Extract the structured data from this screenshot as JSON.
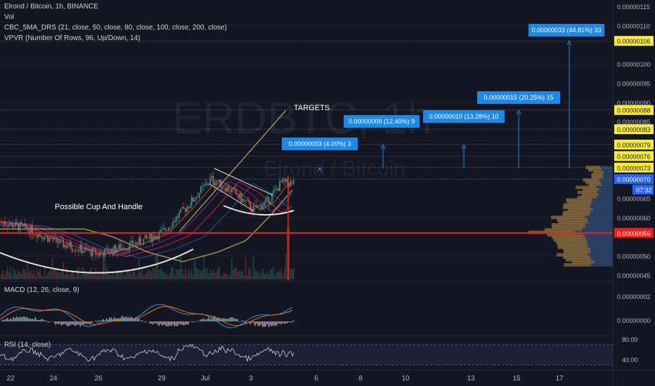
{
  "header": {
    "symbol_line": "Elrond / Bitcoin, 1h, BINANCE",
    "vol_label": "Vol",
    "ma_indicator": "CBC_5MA_DRS (21, close, 50, close, 80, close, 100, close, 200, close)",
    "vpvr_indicator": "VPVR (Number Of Rows, 96, Up/Down, 14)"
  },
  "watermark": {
    "symbol": "ERDBTC, 1h",
    "name": "Elrond / Bitcoin"
  },
  "annotations": {
    "targets": "TARGETS",
    "cup_handle": "Possible Cup And Handle"
  },
  "panes": {
    "macd_label": "MACD (12, 26, close, 9)",
    "rsi_label": "RSI (14, close)"
  },
  "colors": {
    "background": "#131722",
    "up": "#26a69a",
    "down": "#ef5350",
    "target_box": "#1e88e5",
    "price_tag": "#ffeb3b",
    "support_line": "#ff1a1a"
  },
  "chart_data": {
    "type": "candlestick",
    "price_axis": {
      "ticks": [
        "0.00000115",
        "0.00000110",
        "0.00000106",
        "0.00000100",
        "0.00000095",
        "0.00000090",
        "0.00000088",
        "0.00000085",
        "0.00000083",
        "0.00000079",
        "0.00000076",
        "0.00000073",
        "0.00000070",
        "0.00000065",
        "0.00000060",
        "0.00000056",
        "0.00000050",
        "0.00000045"
      ],
      "highlighted": [
        {
          "value": "0.00000106",
          "kind": "target"
        },
        {
          "value": "0.00000088",
          "kind": "target"
        },
        {
          "value": "0.00000083",
          "kind": "target"
        },
        {
          "value": "0.00000079",
          "kind": "target"
        },
        {
          "value": "0.00000076",
          "kind": "target"
        },
        {
          "value": "0.00000073",
          "kind": "target"
        },
        {
          "value": "0.00000070",
          "kind": "current"
        },
        {
          "value": "0.00000056",
          "kind": "support"
        }
      ],
      "countdown": "07:32"
    },
    "time_axis": [
      "22",
      "24",
      "26",
      "29",
      "Jul",
      "3",
      "6",
      "8",
      "10",
      "13",
      "15",
      "17"
    ],
    "targets": [
      {
        "label": "0.00000003 (4.00%) 3",
        "price": 7.3e-07
      },
      {
        "label": "0.00000009 (12.40%) 9",
        "price": 7.9e-07
      },
      {
        "label": "0.00000010 (13.28%) 10",
        "price": 7.9e-07
      },
      {
        "label": "0.00000015 (20.25%) 15",
        "price": 8.8e-07
      },
      {
        "label": "0.00000033 (44.81%) 33",
        "price": 1.06e-06
      }
    ],
    "current_price": 7e-07,
    "support_price": 5.6e-07,
    "macd_axis": [
      "0.00000002",
      "0.00000000"
    ],
    "rsi_axis": [
      "80.00",
      "40.00"
    ]
  }
}
